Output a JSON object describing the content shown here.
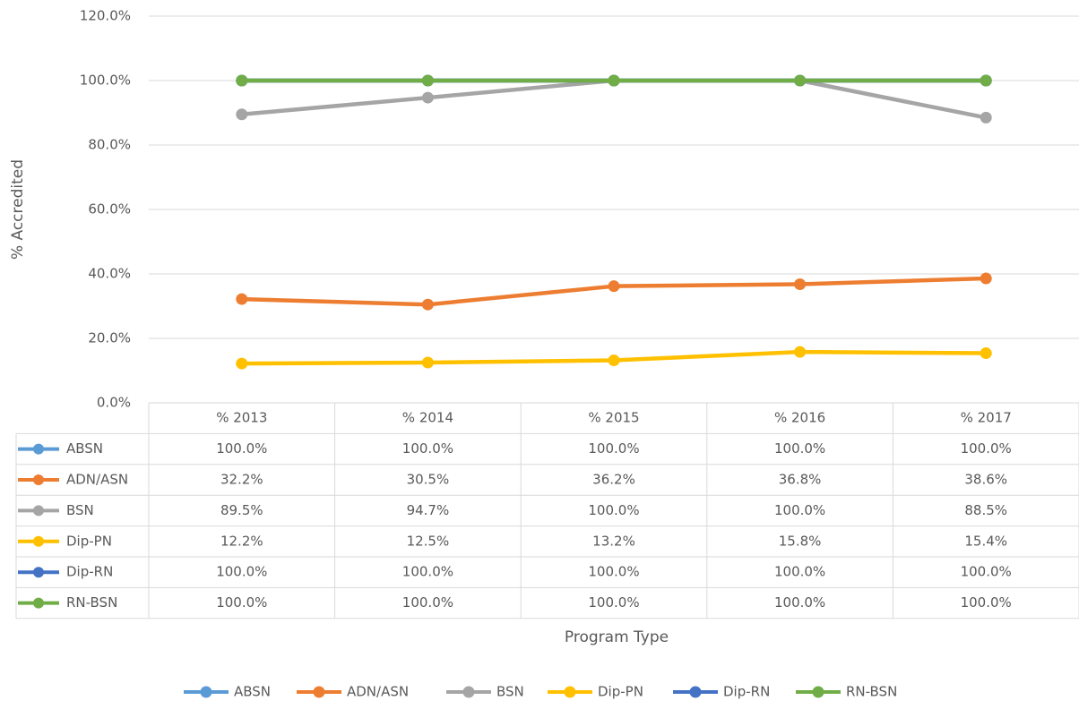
{
  "chart_data": {
    "type": "line",
    "x_label": "Program Type",
    "y_label": "% Accredited",
    "categories": [
      "% 2013",
      "% 2014",
      "% 2015",
      "% 2016",
      "% 2017"
    ],
    "ylim": [
      0,
      120
    ],
    "yticks": [
      {
        "value": 0,
        "label": "0.0%"
      },
      {
        "value": 20,
        "label": "20.0%"
      },
      {
        "value": 40,
        "label": "40.0%"
      },
      {
        "value": 60,
        "label": "60.0%"
      },
      {
        "value": 80,
        "label": "80.0%"
      },
      {
        "value": 100,
        "label": "100.0%"
      },
      {
        "value": 120,
        "label": "120.0%"
      }
    ],
    "grid": true,
    "legend": "bottom",
    "data_table": true,
    "series": [
      {
        "name": "ABSN",
        "color": "#5b9bd5",
        "values": [
          100,
          100,
          100,
          100,
          100
        ],
        "value_labels": [
          "100.0%",
          "100.0%",
          "100.0%",
          "100.0%",
          "100.0%"
        ]
      },
      {
        "name": "ADN/ASN",
        "color": "#ed7d31",
        "values": [
          32.2,
          30.5,
          36.2,
          36.8,
          38.6
        ],
        "value_labels": [
          "32.2%",
          "30.5%",
          "36.2%",
          "36.8%",
          "38.6%"
        ]
      },
      {
        "name": "BSN",
        "color": "#a5a5a5",
        "values": [
          89.5,
          94.7,
          100,
          100,
          88.5
        ],
        "value_labels": [
          "89.5%",
          "94.7%",
          "100.0%",
          "100.0%",
          "88.5%"
        ]
      },
      {
        "name": "Dip-PN",
        "color": "#ffc000",
        "values": [
          12.2,
          12.5,
          13.2,
          15.8,
          15.4
        ],
        "value_labels": [
          "12.2%",
          "12.5%",
          "13.2%",
          "15.8%",
          "15.4%"
        ]
      },
      {
        "name": "Dip-RN",
        "color": "#4472c4",
        "values": [
          100,
          100,
          100,
          100,
          100
        ],
        "value_labels": [
          "100.0%",
          "100.0%",
          "100.0%",
          "100.0%",
          "100.0%"
        ]
      },
      {
        "name": "RN-BSN",
        "color": "#70ad47",
        "values": [
          100,
          100,
          100,
          100,
          100
        ],
        "value_labels": [
          "100.0%",
          "100.0%",
          "100.0%",
          "100.0%",
          "100.0%"
        ]
      }
    ]
  }
}
